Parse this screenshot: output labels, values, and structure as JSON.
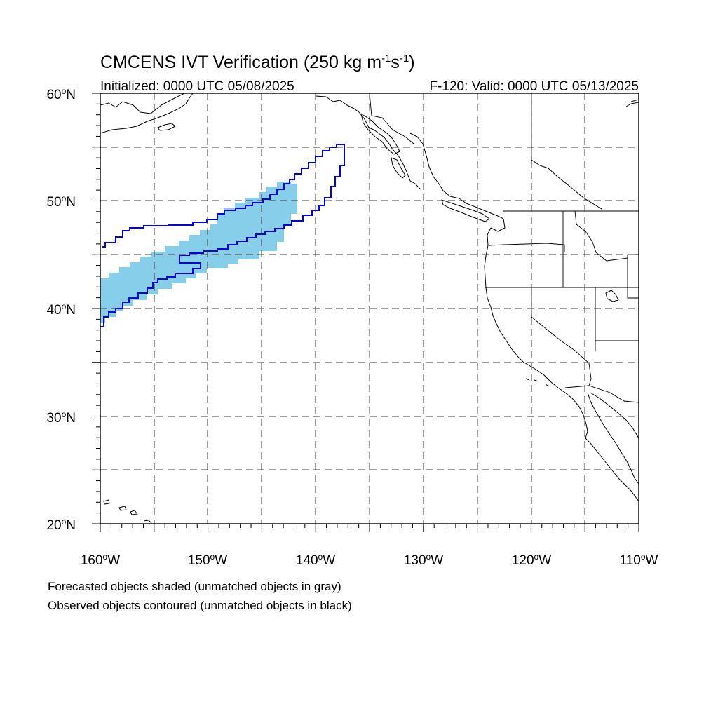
{
  "title": {
    "main": "CMCENS IVT Verification (250 kg m",
    "sup1": "-1",
    "mid": "s",
    "sup2": "-1",
    "close": ")"
  },
  "subtitle": {
    "left": "Initialized: 0000 UTC 05/08/2025",
    "right": "F-120: Valid: 0000 UTC 05/13/2025"
  },
  "map": {
    "lon_range": [
      -160,
      -110
    ],
    "lat_range": [
      20,
      60
    ],
    "lon_labels": [
      "160",
      "150",
      "140",
      "130",
      "120",
      "110"
    ],
    "lon_suffix": "W",
    "lat_labels": [
      "60",
      "50",
      "40",
      "30",
      "20"
    ],
    "lat_suffix": "N",
    "degree_symbol": "o",
    "grid_lines": "dashed, every 5 degrees",
    "colors": {
      "forecast_shade": "#87ceeb",
      "observed_contour": "#0000e0"
    }
  },
  "notes": {
    "line1": "Forecasted objects shaded (unmatched objects in gray)",
    "line2": "Observed objects contoured (unmatched objects in black)"
  }
}
